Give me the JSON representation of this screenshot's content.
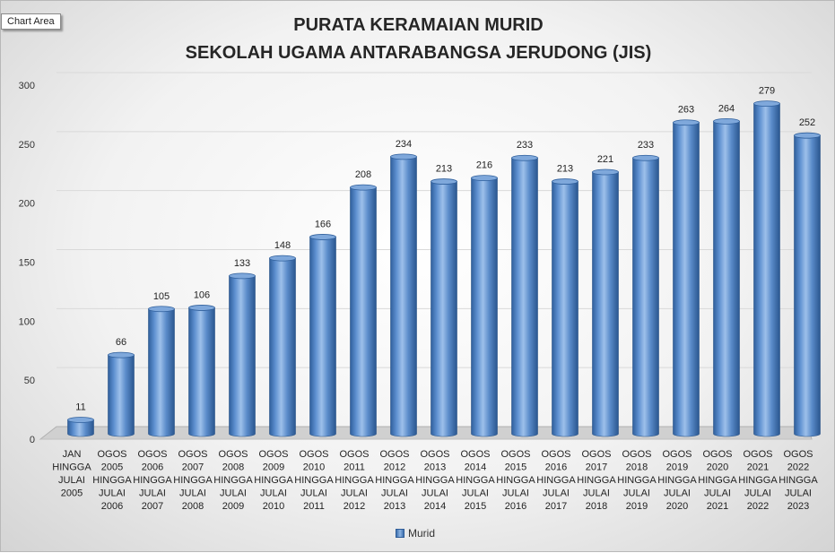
{
  "chart_area_label": "Chart Area",
  "chart_data": {
    "type": "bar",
    "title": "PURATA KERAMAIAN MURID",
    "subtitle": "SEKOLAH UGAMA ANTARABANGSA JERUDONG (JIS)",
    "xlabel": "",
    "ylabel": "",
    "ylim": [
      0,
      300
    ],
    "yticks": [
      0,
      50,
      100,
      150,
      200,
      250,
      300
    ],
    "grid": true,
    "legend_position": "bottom",
    "bar_color": "#4a7dbb",
    "categories": [
      [
        "JAN",
        "HINGGA",
        "JULAI",
        "2005"
      ],
      [
        "OGOS",
        "2005",
        "HINGGA",
        "JULAI",
        "2006"
      ],
      [
        "OGOS",
        "2006",
        "HINGGA",
        "JULAI",
        "2007"
      ],
      [
        "OGOS",
        "2007",
        "HINGGA",
        "JULAI",
        "2008"
      ],
      [
        "OGOS",
        "2008",
        "HINGGA",
        "JULAI",
        "2009"
      ],
      [
        "OGOS",
        "2009",
        "HINGGA",
        "JULAI",
        "2010"
      ],
      [
        "OGOS",
        "2010",
        "HINGGA",
        "JULAI",
        "2011"
      ],
      [
        "OGOS",
        "2011",
        "HINGGA",
        "JULAI",
        "2012"
      ],
      [
        "OGOS",
        "2012",
        "HINGGA",
        "JULAI",
        "2013"
      ],
      [
        "OGOS",
        "2013",
        "HINGGA",
        "JULAI",
        "2014"
      ],
      [
        "OGOS",
        "2014",
        "HINGGA",
        "JULAI",
        "2015"
      ],
      [
        "OGOS",
        "2015",
        "HINGGA",
        "JULAI",
        "2016"
      ],
      [
        "OGOS",
        "2016",
        "HINGGA",
        "JULAI",
        "2017"
      ],
      [
        "OGOS",
        "2017",
        "HINGGA",
        "JULAI",
        "2018"
      ],
      [
        "OGOS",
        "2018",
        "HINGGA",
        "JULAI",
        "2019"
      ],
      [
        "OGOS",
        "2019",
        "HINGGA",
        "JULAI",
        "2020"
      ],
      [
        "OGOS",
        "2020",
        "HINGGA",
        "JULAI",
        "2021"
      ],
      [
        "OGOS",
        "2021",
        "HINGGA",
        "JULAI",
        "2022"
      ],
      [
        "OGOS",
        "2022",
        "HINGGA",
        "JULAI",
        "2023"
      ]
    ],
    "series": [
      {
        "name": "Murid",
        "values": [
          11,
          66,
          105,
          106,
          133,
          148,
          166,
          208,
          234,
          213,
          216,
          233,
          213,
          221,
          233,
          263,
          264,
          279,
          252
        ]
      }
    ]
  }
}
